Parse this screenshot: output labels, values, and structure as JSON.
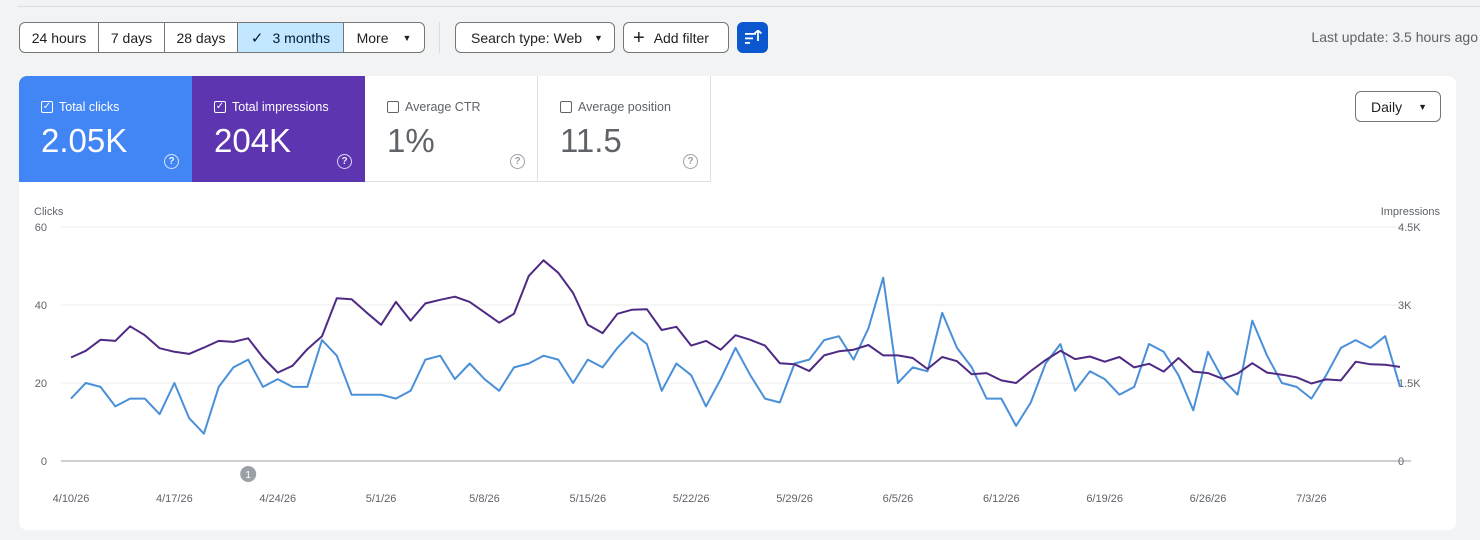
{
  "toolbar": {
    "ranges": [
      {
        "label": "24 hours",
        "selected": false
      },
      {
        "label": "7 days",
        "selected": false
      },
      {
        "label": "28 days",
        "selected": false
      },
      {
        "label": "3 months",
        "selected": true
      },
      {
        "label": "More",
        "selected": false
      }
    ],
    "search_type": "Search type: Web",
    "add_filter": "Add filter",
    "last_update": "Last update: 3.5 hours ago"
  },
  "metrics": {
    "clicks": {
      "label": "Total clicks",
      "value": "2.05K",
      "checked": true,
      "color": "#4285f4"
    },
    "impressions": {
      "label": "Total impressions",
      "value": "204K",
      "checked": true,
      "color": "#5e35b1"
    },
    "ctr": {
      "label": "Average CTR",
      "value": "1%",
      "checked": false
    },
    "position": {
      "label": "Average position",
      "value": "11.5",
      "checked": false
    }
  },
  "granularity": "Daily",
  "chart_data": {
    "type": "line",
    "left_axis": {
      "label": "Clicks",
      "ticks": [
        "0",
        "20",
        "40",
        "60"
      ],
      "range": [
        0,
        60
      ]
    },
    "right_axis": {
      "label": "Impressions",
      "ticks": [
        "0",
        "1.5K",
        "3K",
        "4.5K"
      ],
      "range": [
        0,
        4500
      ]
    },
    "x_tick_labels": [
      "4/10/26",
      "4/17/26",
      "4/24/26",
      "5/1/26",
      "5/8/26",
      "5/15/26",
      "5/22/26",
      "5/29/26",
      "6/5/26",
      "6/12/26",
      "6/19/26",
      "6/26/26",
      "7/3/26"
    ],
    "start_date": "4/10/26",
    "annotation": {
      "label": "1",
      "date": "4/22/26"
    },
    "grid": true,
    "series": [
      {
        "name": "Clicks",
        "axis": "left",
        "color": "#4a90d9",
        "values": [
          16,
          20,
          19,
          14,
          16,
          16,
          12,
          20,
          11,
          7,
          19,
          24,
          26,
          19,
          21,
          19,
          19,
          31,
          27,
          17,
          17,
          17,
          16,
          18,
          26,
          27,
          21,
          25,
          21,
          18,
          24,
          25,
          27,
          26,
          20,
          26,
          24,
          29,
          33,
          30,
          18,
          25,
          22,
          14,
          21,
          29,
          22,
          16,
          15,
          25,
          26,
          31,
          32,
          26,
          34,
          47,
          20,
          24,
          23,
          38,
          29,
          24,
          16,
          16,
          9,
          15,
          25,
          30,
          18,
          23,
          21,
          17,
          19,
          30,
          28,
          22,
          13,
          28,
          21,
          17,
          36,
          27,
          20,
          19,
          16,
          22,
          29,
          31,
          29,
          32,
          19
        ]
      },
      {
        "name": "Impressions",
        "axis": "right",
        "color": "#4e2a84",
        "values": [
          1990,
          2120,
          2330,
          2310,
          2590,
          2420,
          2170,
          2100,
          2060,
          2180,
          2310,
          2290,
          2360,
          1990,
          1700,
          1830,
          2150,
          2400,
          3130,
          3110,
          2860,
          2620,
          3060,
          2700,
          3030,
          3100,
          3160,
          3060,
          2860,
          2660,
          2830,
          3560,
          3860,
          3620,
          3230,
          2620,
          2460,
          2830,
          2910,
          2920,
          2520,
          2580,
          2220,
          2310,
          2140,
          2420,
          2330,
          2220,
          1880,
          1860,
          1730,
          2030,
          2110,
          2140,
          2230,
          2030,
          2030,
          1980,
          1770,
          2000,
          1920,
          1670,
          1690,
          1550,
          1500,
          1730,
          1940,
          2120,
          1960,
          2010,
          1910,
          2000,
          1800,
          1870,
          1720,
          1980,
          1720,
          1690,
          1580,
          1680,
          1880,
          1700,
          1660,
          1610,
          1490,
          1570,
          1550,
          1910,
          1860,
          1850,
          1810
        ]
      }
    ]
  }
}
